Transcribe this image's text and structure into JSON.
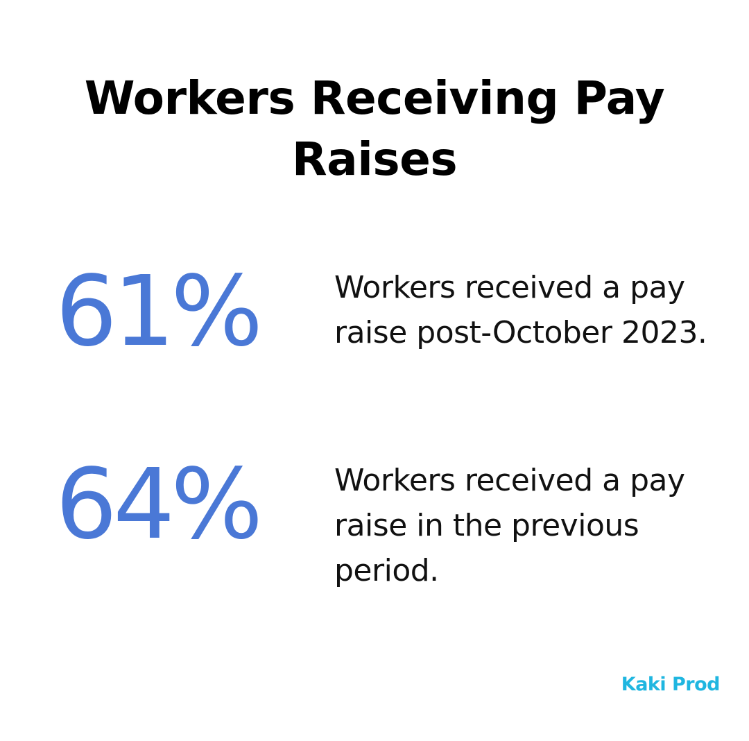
{
  "title": "Workers Receiving Pay Raises",
  "stats": [
    {
      "value": "61%",
      "description": "Workers received a pay raise post-October 2023."
    },
    {
      "value": "64%",
      "description": "Workers received a pay raise in the previous period."
    }
  ],
  "brand": "Kaki Prod",
  "colors": {
    "accent": "#4a78d6",
    "brand": "#1fb6e0",
    "text": "#111111",
    "background": "#ffffff"
  }
}
